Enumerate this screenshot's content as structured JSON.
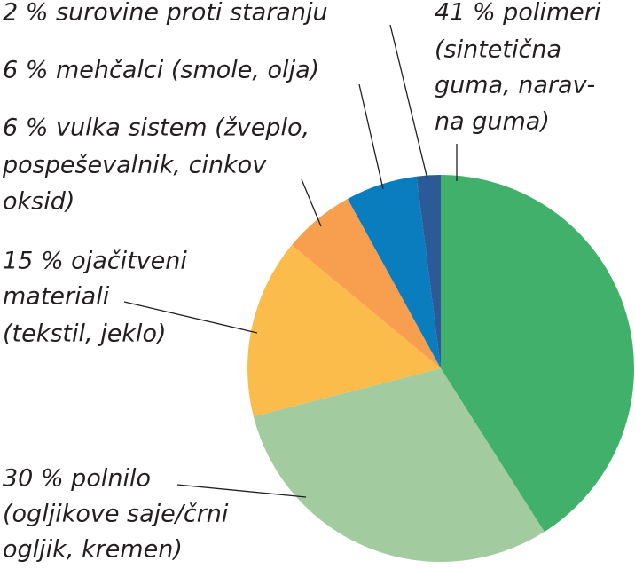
{
  "chart_data": {
    "type": "pie",
    "categories": [
      [
        "41 % polimeri",
        "(sintetična",
        "guma, narav-",
        "na guma)"
      ],
      [
        "30 % polnilo",
        "(ogljikove saje/črni",
        "ogljik, kremen)"
      ],
      [
        "15 % ojačitveni",
        "materiali",
        "(tekstil, jeklo)"
      ],
      [
        "6 % vulka sistem (žveplo,",
        "pospeševalnik, cinkov",
        "oksid)"
      ],
      [
        "6 % mehčalci (smole, olja)"
      ],
      [
        "2 % surovine proti staranju"
      ]
    ],
    "values": [
      41,
      30,
      15,
      6,
      6,
      2
    ],
    "colors": [
      "#41b06a",
      "#a2cba0",
      "#fbbc4b",
      "#f79f4e",
      "#0a7dbf",
      "#2b5a97"
    ]
  }
}
